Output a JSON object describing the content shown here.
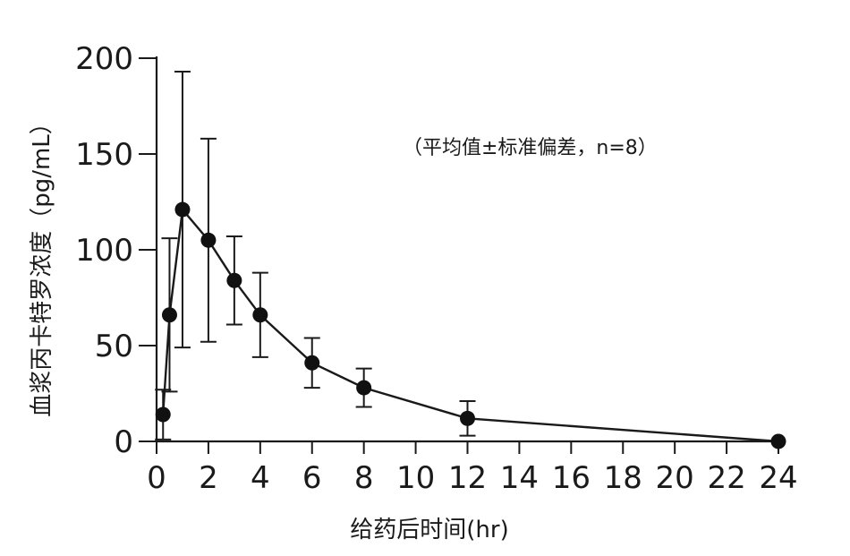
{
  "chart_data": {
    "type": "line",
    "title": "",
    "xlabel": "给药后时间(hr)",
    "ylabel": "血浆丙卡特罗浓度（pg/mL）",
    "annotation": "（平均值±标准偏差，n=8）",
    "xlim": [
      0,
      24
    ],
    "ylim": [
      0,
      200
    ],
    "x_ticks": [
      0,
      2,
      4,
      6,
      8,
      10,
      12,
      14,
      16,
      18,
      20,
      22,
      24
    ],
    "y_ticks": [
      0,
      50,
      100,
      150,
      200
    ],
    "grid": false,
    "legend": "none",
    "series": [
      {
        "x": [
          0.25,
          0.5,
          1,
          2,
          3,
          4,
          6,
          8,
          12,
          24
        ],
        "y": [
          14,
          66,
          121,
          105,
          84,
          66,
          41,
          28,
          12,
          0
        ],
        "error": [
          13,
          40,
          72,
          53,
          23,
          22,
          13,
          10,
          9,
          0
        ]
      }
    ],
    "colors": {
      "line": "#1a1a1a",
      "marker": "#111111"
    }
  }
}
